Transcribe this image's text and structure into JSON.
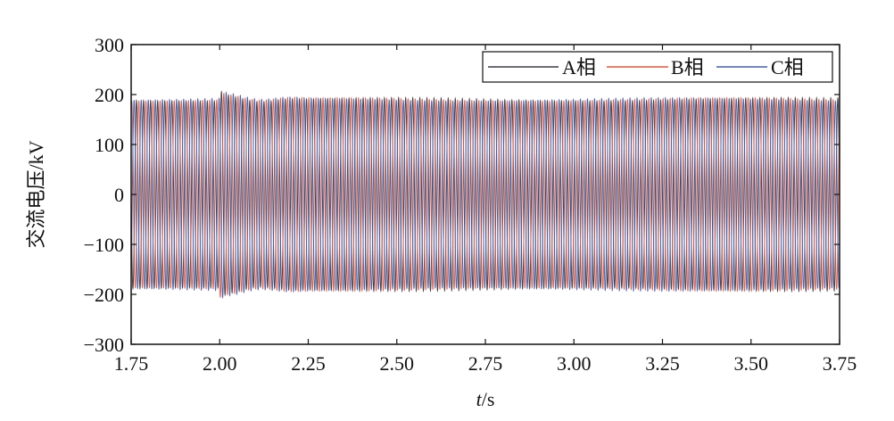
{
  "chart_data": {
    "type": "line",
    "title": "",
    "xlabel_italic": "t",
    "xlabel_rest": "/s",
    "ylabel": "交流电压/kV",
    "xlim": [
      1.75,
      3.75
    ],
    "ylim": [
      -300,
      300
    ],
    "xticks": [
      "1.75",
      "2.00",
      "2.25",
      "2.50",
      "2.75",
      "3.00",
      "3.25",
      "3.50",
      "3.75"
    ],
    "yticks": [
      "300",
      "200",
      "100",
      "0",
      "−100",
      "−200",
      "−300"
    ],
    "legend_position": "top-right",
    "grid": false,
    "fault_time": 2.0,
    "frequency_hz": 50,
    "series": [
      {
        "name": "A相",
        "color": "#3b3b46",
        "phase_deg": 0,
        "amplitude": 190
      },
      {
        "name": "B相",
        "color": "#e8553c",
        "phase_deg": -120,
        "amplitude": 190
      },
      {
        "name": "C相",
        "color": "#3f5fae",
        "phase_deg": 120,
        "amplitude": 190
      }
    ],
    "events": [
      {
        "t": 2.0,
        "peak": 212,
        "trough": -214
      }
    ]
  }
}
